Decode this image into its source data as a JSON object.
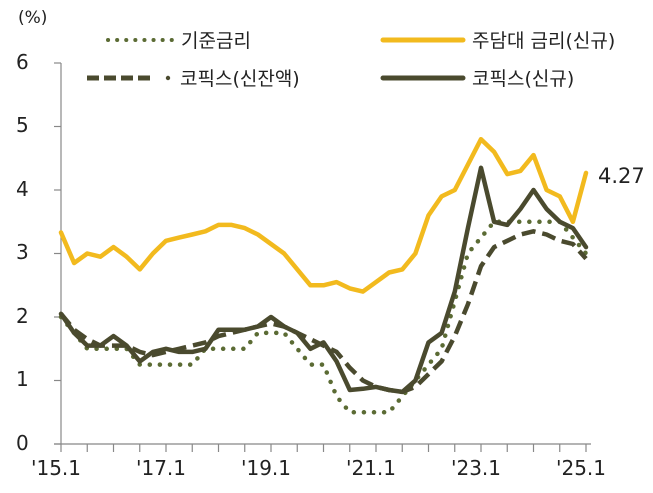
{
  "chart_data": {
    "type": "line",
    "title": "",
    "ylabel": "(%)",
    "xlabel": "",
    "ylim": [
      0,
      6
    ],
    "yticks": [
      0,
      1,
      2,
      3,
      4,
      5,
      6
    ],
    "xticks": [
      "'15.1",
      "'17.1",
      "'19.1",
      "'21.1",
      "'23.1",
      "'25.1"
    ],
    "grid": false,
    "legend_position": "top",
    "x": [
      "15.1",
      "15.4",
      "15.7",
      "15.10",
      "16.1",
      "16.4",
      "16.7",
      "16.10",
      "17.1",
      "17.4",
      "17.7",
      "17.10",
      "18.1",
      "18.4",
      "18.7",
      "18.10",
      "19.1",
      "19.4",
      "19.7",
      "19.10",
      "20.1",
      "20.4",
      "20.7",
      "20.10",
      "21.1",
      "21.4",
      "21.7",
      "21.10",
      "22.1",
      "22.4",
      "22.7",
      "22.10",
      "23.1",
      "23.4",
      "23.7",
      "23.10",
      "24.1",
      "24.4",
      "24.7",
      "24.10",
      "25.1"
    ],
    "series": [
      {
        "name": "기준금리",
        "style": "dotted",
        "color": "#5B6B34",
        "values": [
          2.0,
          1.75,
          1.5,
          1.5,
          1.5,
          1.5,
          1.25,
          1.25,
          1.25,
          1.25,
          1.25,
          1.5,
          1.5,
          1.5,
          1.5,
          1.75,
          1.75,
          1.75,
          1.5,
          1.25,
          1.25,
          0.75,
          0.5,
          0.5,
          0.5,
          0.5,
          0.75,
          1.0,
          1.25,
          1.5,
          2.25,
          3.0,
          3.25,
          3.5,
          3.5,
          3.5,
          3.5,
          3.5,
          3.5,
          3.25,
          3.0
        ]
      },
      {
        "name": "주담대 금리(신규)",
        "style": "solid",
        "color": "#F2BA1E",
        "values": [
          3.33,
          2.85,
          3.0,
          2.95,
          3.1,
          2.95,
          2.75,
          3.0,
          3.2,
          3.25,
          3.3,
          3.35,
          3.45,
          3.45,
          3.4,
          3.3,
          3.15,
          3.0,
          2.75,
          2.5,
          2.5,
          2.55,
          2.45,
          2.4,
          2.55,
          2.7,
          2.75,
          3.0,
          3.6,
          3.9,
          4.0,
          4.4,
          4.8,
          4.6,
          4.25,
          4.3,
          4.55,
          4.0,
          3.9,
          3.5,
          4.27
        ]
      },
      {
        "name": "코픽스(신잔액)",
        "style": "dashed",
        "color": "#4A4A2E",
        "values": [
          2.05,
          1.8,
          1.65,
          1.55,
          1.55,
          1.55,
          1.45,
          1.4,
          1.45,
          1.5,
          1.55,
          1.6,
          1.7,
          1.75,
          1.8,
          1.85,
          1.9,
          1.85,
          1.75,
          1.65,
          1.55,
          1.45,
          1.2,
          1.0,
          0.9,
          0.85,
          0.82,
          0.9,
          1.1,
          1.3,
          1.7,
          2.2,
          2.8,
          3.1,
          3.2,
          3.3,
          3.35,
          3.3,
          3.2,
          3.15,
          2.92
        ]
      },
      {
        "name": "코픽스(신규)",
        "style": "solid",
        "color": "#4A4A2E",
        "values": [
          2.05,
          1.75,
          1.55,
          1.55,
          1.7,
          1.55,
          1.3,
          1.45,
          1.5,
          1.45,
          1.45,
          1.5,
          1.8,
          1.8,
          1.8,
          1.85,
          2.0,
          1.85,
          1.75,
          1.5,
          1.6,
          1.3,
          0.85,
          0.87,
          0.9,
          0.85,
          0.82,
          1.0,
          1.6,
          1.75,
          2.4,
          3.4,
          4.35,
          3.5,
          3.45,
          3.7,
          4.0,
          3.7,
          3.5,
          3.4,
          3.1
        ]
      }
    ],
    "annotations": [
      {
        "series": "주담대 금리(신규)",
        "x": "25.1",
        "text": "4.27"
      }
    ]
  },
  "legend": [
    {
      "label": "기준금리"
    },
    {
      "label": "주담대 금리(신규)"
    },
    {
      "label": "코픽스(신잔액)"
    },
    {
      "label": "코픽스(신규)"
    }
  ],
  "axis": {
    "unit": "(%)",
    "y": [
      "0",
      "1",
      "2",
      "3",
      "4",
      "5",
      "6"
    ],
    "x": [
      "'15.1",
      "'17.1",
      "'19.1",
      "'21.1",
      "'23.1",
      "'25.1"
    ]
  },
  "end_label": "4.27"
}
